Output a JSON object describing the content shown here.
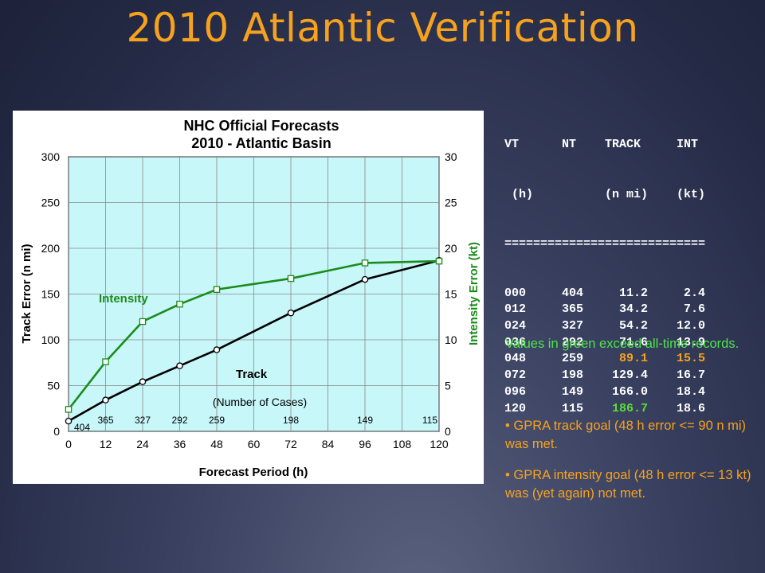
{
  "slide": {
    "title": "2010 Atlantic Verification"
  },
  "chart_data": {
    "type": "line",
    "title": "NHC Official Forecasts",
    "subtitle": "2010 - Atlantic Basin",
    "xlabel": "Forecast Period (h)",
    "ylabel_left": "Track Error (n mi)",
    "ylabel_right": "Intensity Error (kt)",
    "xlim": [
      0,
      120
    ],
    "ylim_left": [
      0,
      300
    ],
    "ylim_right": [
      0,
      30
    ],
    "x_ticks": [
      "0",
      "12",
      "24",
      "36",
      "48",
      "60",
      "72",
      "84",
      "96",
      "108",
      "120"
    ],
    "y_ticks_left": [
      "0",
      "50",
      "100",
      "150",
      "200",
      "250",
      "300"
    ],
    "y_ticks_right": [
      "0",
      "5",
      "10",
      "15",
      "20",
      "25",
      "30"
    ],
    "grid": true,
    "series": [
      {
        "name": "Track",
        "axis": "left",
        "color": "#000000",
        "marker": "circle",
        "x": [
          0,
          12,
          24,
          36,
          48,
          72,
          96,
          120
        ],
        "values": [
          11.2,
          34.2,
          54.2,
          71.6,
          89.1,
          129.4,
          166.0,
          186.7
        ]
      },
      {
        "name": "Intensity",
        "axis": "right",
        "color": "#1b8c1b",
        "marker": "square",
        "x": [
          0,
          12,
          24,
          36,
          48,
          72,
          96,
          120
        ],
        "values": [
          2.4,
          7.6,
          12.0,
          13.9,
          15.5,
          16.7,
          18.4,
          18.6
        ]
      }
    ],
    "cases_label": "(Number of Cases)",
    "cases": [
      {
        "x": 0,
        "label": "404"
      },
      {
        "x": 12,
        "label": "365"
      },
      {
        "x": 24,
        "label": "327"
      },
      {
        "x": 36,
        "label": "292"
      },
      {
        "x": 48,
        "label": "259"
      },
      {
        "x": 72,
        "label": "198"
      },
      {
        "x": 96,
        "label": "149"
      },
      {
        "x": 120,
        "label": "115"
      }
    ]
  },
  "table": {
    "header1": "VT      NT    TRACK     INT",
    "header2": " (h)          (n mi)    (kt)",
    "divider": "============================",
    "rows": [
      {
        "vt": "000",
        "nt": "404",
        "track": "11.2",
        "int": "2.4",
        "track_hl": "",
        "int_hl": ""
      },
      {
        "vt": "012",
        "nt": "365",
        "track": "34.2",
        "int": "7.6",
        "track_hl": "",
        "int_hl": ""
      },
      {
        "vt": "024",
        "nt": "327",
        "track": "54.2",
        "int": "12.0",
        "track_hl": "",
        "int_hl": ""
      },
      {
        "vt": "036",
        "nt": "292",
        "track": "71.6",
        "int": "13.9",
        "track_hl": "",
        "int_hl": ""
      },
      {
        "vt": "048",
        "nt": "259",
        "track": "89.1",
        "int": "15.5",
        "track_hl": "orange",
        "int_hl": "orange"
      },
      {
        "vt": "072",
        "nt": "198",
        "track": "129.4",
        "int": "16.7",
        "track_hl": "",
        "int_hl": ""
      },
      {
        "vt": "096",
        "nt": "149",
        "track": "166.0",
        "int": "18.4",
        "track_hl": "",
        "int_hl": ""
      },
      {
        "vt": "120",
        "nt": "115",
        "track": "186.7",
        "int": "18.6",
        "track_hl": "green",
        "int_hl": ""
      }
    ]
  },
  "notes": {
    "records": "Values in green exceed all-time records.",
    "bullet_track": "GPRA track goal (48 h error <= 90 n mi) was met.",
    "bullet_intensity": "GPRA intensity goal (48 h error <= 13 kt) was (yet again) not met."
  }
}
